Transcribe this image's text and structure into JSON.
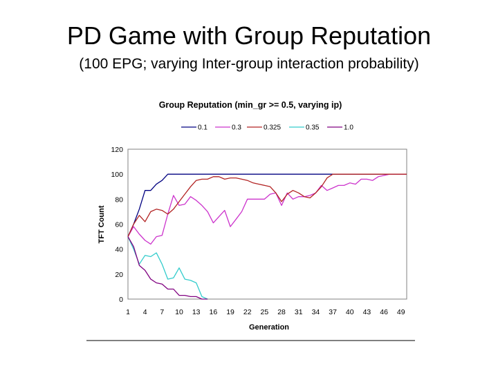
{
  "slide": {
    "title": "PD Game with Group Reputation",
    "subtitle": "(100 EPG; varying Inter-group interaction probability)"
  },
  "chart_data": {
    "type": "line",
    "title": "Group Reputation (min_gr >= 0.5, varying ip)",
    "xlabel": "Generation",
    "ylabel": "TFT Count",
    "ylim": [
      0,
      120
    ],
    "yticks": [
      0,
      20,
      40,
      60,
      80,
      100,
      120
    ],
    "xlim": [
      1,
      50
    ],
    "xticks": [
      1,
      4,
      7,
      10,
      13,
      16,
      19,
      22,
      25,
      28,
      31,
      34,
      37,
      40,
      43,
      46,
      49
    ],
    "grid": false,
    "legend_position": "top",
    "series": [
      {
        "name": "0.1",
        "color": "#000080",
        "x": [
          1,
          2,
          3,
          4,
          5,
          6,
          7,
          8,
          9,
          10,
          11,
          12,
          13,
          14,
          15,
          16,
          17,
          18,
          19,
          20,
          21,
          22,
          23,
          24,
          25,
          26,
          27,
          28,
          29,
          30,
          31,
          32,
          33,
          34,
          35,
          36,
          37,
          38,
          39,
          40,
          41,
          42,
          43,
          44,
          45,
          46,
          47,
          48,
          49,
          50
        ],
        "values": [
          50,
          60,
          72,
          87,
          87,
          92,
          95,
          100,
          100,
          100,
          100,
          100,
          100,
          100,
          100,
          100,
          100,
          100,
          100,
          100,
          100,
          100,
          100,
          100,
          100,
          100,
          100,
          100,
          100,
          100,
          100,
          100,
          100,
          100,
          100,
          100,
          100,
          100,
          100,
          100,
          100,
          100,
          100,
          100,
          100,
          100,
          100,
          100,
          100,
          100
        ]
      },
      {
        "name": "0.3",
        "color": "#cc33cc",
        "x": [
          1,
          2,
          3,
          4,
          5,
          6,
          7,
          8,
          9,
          10,
          11,
          12,
          13,
          14,
          15,
          16,
          17,
          18,
          19,
          20,
          21,
          22,
          23,
          24,
          25,
          26,
          27,
          28,
          29,
          30,
          31,
          32,
          33,
          34,
          35,
          36,
          37,
          38,
          39,
          40,
          41,
          42,
          43,
          44,
          45,
          46,
          47,
          48,
          49,
          50
        ],
        "values": [
          50,
          58,
          52,
          47,
          44,
          50,
          51,
          68,
          83,
          75,
          76,
          82,
          79,
          75,
          70,
          61,
          66,
          71,
          58,
          64,
          70,
          80,
          80,
          80,
          80,
          84,
          85,
          75,
          85,
          80,
          82,
          82,
          83,
          85,
          91,
          87,
          89,
          91,
          91,
          93,
          92,
          96,
          96,
          95,
          98,
          99,
          100,
          100,
          100,
          100
        ]
      },
      {
        "name": "0.325",
        "color": "#b22222",
        "x": [
          1,
          2,
          3,
          4,
          5,
          6,
          7,
          8,
          9,
          10,
          11,
          12,
          13,
          14,
          15,
          16,
          17,
          18,
          19,
          20,
          21,
          22,
          23,
          24,
          25,
          26,
          27,
          28,
          29,
          30,
          31,
          32,
          33,
          34,
          35,
          36,
          37,
          38,
          39,
          40,
          41,
          42,
          43,
          44,
          45,
          46,
          47,
          48,
          49,
          50
        ],
        "values": [
          50,
          60,
          67,
          62,
          70,
          72,
          71,
          68,
          72,
          78,
          84,
          90,
          95,
          96,
          96,
          98,
          98,
          96,
          97,
          97,
          96,
          95,
          93,
          92,
          91,
          90,
          85,
          78,
          84,
          87,
          85,
          82,
          81,
          85,
          90,
          97,
          100,
          100,
          100,
          100,
          100,
          100,
          100,
          100,
          100,
          100,
          100,
          100,
          100,
          100
        ]
      },
      {
        "name": "0.35",
        "color": "#33cccc",
        "x": [
          1,
          2,
          3,
          4,
          5,
          6,
          7,
          8,
          9,
          10,
          11,
          12,
          13,
          14,
          15
        ],
        "values": [
          50,
          40,
          28,
          35,
          34,
          37,
          28,
          16,
          17,
          25,
          16,
          15,
          13,
          2,
          0
        ]
      },
      {
        "name": "1.0",
        "color": "#800080",
        "x": [
          1,
          2,
          3,
          4,
          5,
          6,
          7,
          8,
          9,
          10,
          11,
          12,
          13,
          14,
          15
        ],
        "values": [
          50,
          42,
          27,
          23,
          16,
          13,
          12,
          8,
          8,
          3,
          3,
          2,
          2,
          0,
          0
        ]
      }
    ]
  }
}
